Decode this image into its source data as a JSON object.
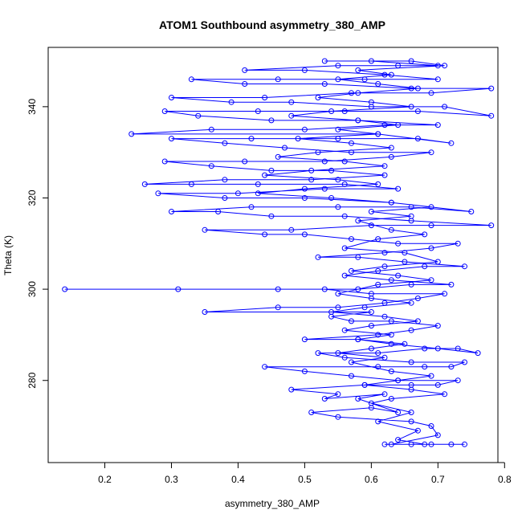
{
  "chart_data": {
    "type": "scatter",
    "title": "ATOM1 Southbound asymmetry_380_AMP",
    "xlabel": "asymmetry_380_AMP",
    "ylabel": "Theta (K)",
    "xlim": [
      0.115,
      0.79
    ],
    "ylim": [
      262,
      353
    ],
    "x_ticks": [
      0.2,
      0.3,
      0.4,
      0.5,
      0.6,
      0.7,
      0.8
    ],
    "x_tick_labels": [
      "0.2",
      "0.3",
      "0.4",
      "0.5",
      "0.6",
      "0.7",
      "0.8"
    ],
    "y_ticks": [
      280,
      300,
      320,
      340
    ],
    "y_tick_labels": [
      "280",
      "300",
      "320",
      "340"
    ],
    "grid": false,
    "legend": "none",
    "series_color": "#0000ff",
    "marker": "open-circle",
    "connected": true,
    "series": [
      {
        "points": [
          [
            0.62,
            266
          ],
          [
            0.66,
            266
          ],
          [
            0.69,
            266
          ],
          [
            0.72,
            266
          ],
          [
            0.74,
            266
          ],
          [
            0.63,
            266
          ],
          [
            0.7,
            268
          ],
          [
            0.69,
            270
          ],
          [
            0.66,
            271
          ],
          [
            0.55,
            272
          ],
          [
            0.51,
            273
          ],
          [
            0.6,
            274
          ],
          [
            0.64,
            273
          ],
          [
            0.58,
            276
          ],
          [
            0.62,
            277
          ],
          [
            0.53,
            276
          ],
          [
            0.55,
            277
          ],
          [
            0.48,
            278
          ],
          [
            0.59,
            279
          ],
          [
            0.66,
            279
          ],
          [
            0.7,
            279
          ],
          [
            0.73,
            280
          ],
          [
            0.64,
            280
          ],
          [
            0.57,
            281
          ],
          [
            0.5,
            282
          ],
          [
            0.44,
            283
          ],
          [
            0.61,
            283
          ],
          [
            0.68,
            283
          ],
          [
            0.72,
            283
          ],
          [
            0.74,
            284
          ],
          [
            0.66,
            284
          ],
          [
            0.56,
            285
          ],
          [
            0.52,
            286
          ],
          [
            0.61,
            286
          ],
          [
            0.68,
            287
          ],
          [
            0.73,
            287
          ],
          [
            0.76,
            286
          ],
          [
            0.7,
            287
          ],
          [
            0.63,
            288
          ],
          [
            0.58,
            289
          ],
          [
            0.5,
            289
          ],
          [
            0.61,
            290
          ],
          [
            0.66,
            291
          ],
          [
            0.7,
            292
          ],
          [
            0.63,
            293
          ],
          [
            0.57,
            293
          ],
          [
            0.54,
            294
          ],
          [
            0.6,
            295
          ],
          [
            0.35,
            295
          ],
          [
            0.46,
            296
          ],
          [
            0.55,
            296
          ],
          [
            0.62,
            297
          ],
          [
            0.67,
            298
          ],
          [
            0.71,
            299
          ],
          [
            0.6,
            299
          ],
          [
            0.53,
            300
          ],
          [
            0.14,
            300
          ],
          [
            0.31,
            300
          ],
          [
            0.46,
            300
          ],
          [
            0.58,
            300
          ],
          [
            0.66,
            301
          ],
          [
            0.72,
            301
          ],
          [
            0.63,
            302
          ],
          [
            0.56,
            303
          ],
          [
            0.61,
            304
          ],
          [
            0.68,
            305
          ],
          [
            0.74,
            305
          ],
          [
            0.65,
            306
          ],
          [
            0.58,
            307
          ],
          [
            0.52,
            307
          ],
          [
            0.62,
            308
          ],
          [
            0.69,
            309
          ],
          [
            0.73,
            310
          ],
          [
            0.64,
            310
          ],
          [
            0.57,
            311
          ],
          [
            0.5,
            312
          ],
          [
            0.44,
            312
          ],
          [
            0.35,
            313
          ],
          [
            0.48,
            313
          ],
          [
            0.6,
            314
          ],
          [
            0.69,
            314
          ],
          [
            0.78,
            314
          ],
          [
            0.66,
            315
          ],
          [
            0.56,
            316
          ],
          [
            0.45,
            316
          ],
          [
            0.37,
            317
          ],
          [
            0.3,
            317
          ],
          [
            0.42,
            318
          ],
          [
            0.55,
            318
          ],
          [
            0.66,
            318
          ],
          [
            0.75,
            317
          ],
          [
            0.63,
            319
          ],
          [
            0.5,
            320
          ],
          [
            0.38,
            320
          ],
          [
            0.28,
            321
          ],
          [
            0.4,
            321
          ],
          [
            0.53,
            322
          ],
          [
            0.64,
            322
          ],
          [
            0.56,
            323
          ],
          [
            0.43,
            323
          ],
          [
            0.33,
            323
          ],
          [
            0.26,
            323
          ],
          [
            0.38,
            324
          ],
          [
            0.51,
            324
          ],
          [
            0.62,
            325
          ],
          [
            0.54,
            326
          ],
          [
            0.45,
            326
          ],
          [
            0.36,
            327
          ],
          [
            0.29,
            328
          ],
          [
            0.41,
            328
          ],
          [
            0.53,
            328
          ],
          [
            0.63,
            329
          ],
          [
            0.69,
            330
          ],
          [
            0.57,
            330
          ],
          [
            0.47,
            331
          ],
          [
            0.38,
            332
          ],
          [
            0.3,
            333
          ],
          [
            0.42,
            333
          ],
          [
            0.55,
            333
          ],
          [
            0.67,
            333
          ],
          [
            0.72,
            332
          ],
          [
            0.61,
            334
          ],
          [
            0.24,
            334
          ],
          [
            0.36,
            335
          ],
          [
            0.5,
            335
          ],
          [
            0.62,
            336
          ],
          [
            0.7,
            336
          ],
          [
            0.58,
            337
          ],
          [
            0.45,
            337
          ],
          [
            0.34,
            338
          ],
          [
            0.29,
            339
          ],
          [
            0.43,
            339
          ],
          [
            0.56,
            339
          ],
          [
            0.67,
            339
          ],
          [
            0.78,
            338
          ],
          [
            0.71,
            340
          ],
          [
            0.6,
            340
          ],
          [
            0.48,
            341
          ],
          [
            0.39,
            341
          ],
          [
            0.3,
            342
          ],
          [
            0.44,
            342
          ],
          [
            0.57,
            343
          ],
          [
            0.69,
            343
          ],
          [
            0.78,
            344
          ],
          [
            0.66,
            344
          ],
          [
            0.53,
            345
          ],
          [
            0.41,
            345
          ],
          [
            0.33,
            346
          ],
          [
            0.46,
            346
          ],
          [
            0.59,
            346
          ],
          [
            0.7,
            346
          ],
          [
            0.62,
            347
          ],
          [
            0.5,
            348
          ],
          [
            0.41,
            348
          ],
          [
            0.55,
            349
          ],
          [
            0.64,
            349
          ],
          [
            0.7,
            349
          ],
          [
            0.6,
            350
          ],
          [
            0.53,
            350
          ],
          [
            0.66,
            350
          ],
          [
            0.71,
            349
          ],
          [
            0.58,
            348
          ],
          [
            0.63,
            347
          ],
          [
            0.55,
            346
          ],
          [
            0.61,
            345
          ],
          [
            0.67,
            344
          ],
          [
            0.58,
            343
          ],
          [
            0.52,
            342
          ],
          [
            0.6,
            341
          ],
          [
            0.66,
            340
          ],
          [
            0.54,
            339
          ],
          [
            0.48,
            338
          ],
          [
            0.58,
            337
          ],
          [
            0.64,
            336
          ],
          [
            0.55,
            335
          ],
          [
            0.61,
            334
          ],
          [
            0.49,
            333
          ],
          [
            0.57,
            332
          ],
          [
            0.63,
            331
          ],
          [
            0.52,
            330
          ],
          [
            0.46,
            329
          ],
          [
            0.56,
            328
          ],
          [
            0.62,
            327
          ],
          [
            0.51,
            326
          ],
          [
            0.44,
            325
          ],
          [
            0.55,
            324
          ],
          [
            0.61,
            323
          ],
          [
            0.5,
            322
          ],
          [
            0.43,
            321
          ],
          [
            0.54,
            320
          ],
          [
            0.63,
            319
          ],
          [
            0.69,
            318
          ],
          [
            0.6,
            317
          ],
          [
            0.66,
            316
          ],
          [
            0.58,
            315
          ],
          [
            0.63,
            313
          ],
          [
            0.68,
            312
          ],
          [
            0.61,
            311
          ],
          [
            0.56,
            309
          ],
          [
            0.65,
            308
          ],
          [
            0.7,
            306
          ],
          [
            0.62,
            305
          ],
          [
            0.57,
            304
          ],
          [
            0.64,
            303
          ],
          [
            0.69,
            302
          ],
          [
            0.61,
            301
          ],
          [
            0.55,
            299
          ],
          [
            0.6,
            298
          ],
          [
            0.66,
            297
          ],
          [
            0.59,
            296
          ],
          [
            0.54,
            295
          ],
          [
            0.62,
            294
          ],
          [
            0.67,
            293
          ],
          [
            0.6,
            292
          ],
          [
            0.56,
            291
          ],
          [
            0.63,
            290
          ],
          [
            0.58,
            289
          ],
          [
            0.65,
            288
          ],
          [
            0.6,
            287
          ],
          [
            0.55,
            286
          ],
          [
            0.62,
            285
          ],
          [
            0.57,
            284
          ],
          [
            0.63,
            282
          ],
          [
            0.69,
            281
          ],
          [
            0.64,
            280
          ],
          [
            0.59,
            279
          ],
          [
            0.66,
            278
          ],
          [
            0.71,
            277
          ],
          [
            0.63,
            276
          ],
          [
            0.6,
            275
          ],
          [
            0.66,
            273
          ],
          [
            0.61,
            271
          ],
          [
            0.67,
            269
          ],
          [
            0.64,
            267
          ],
          [
            0.68,
            266
          ]
        ]
      }
    ]
  }
}
